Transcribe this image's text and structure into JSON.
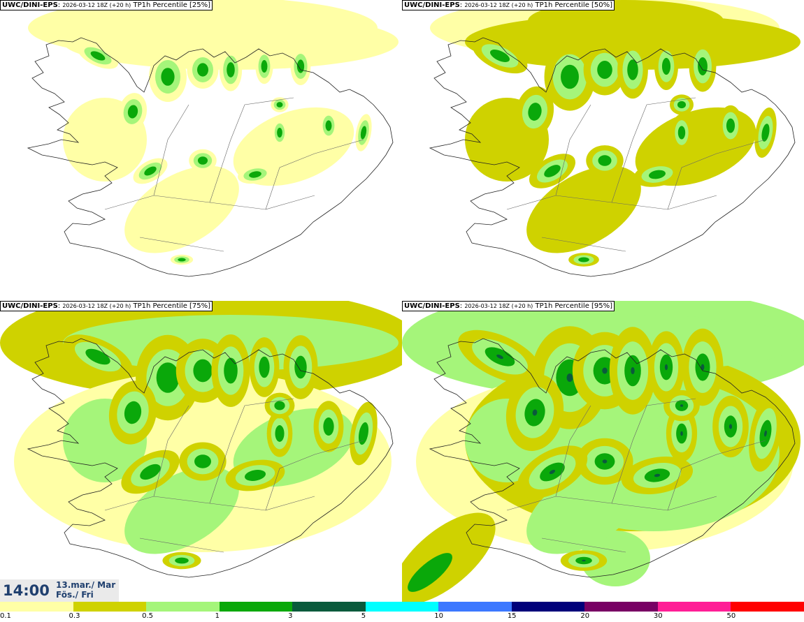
{
  "panels": [
    {
      "model": "UWC/DINI-EPS",
      "run": "2026-03-12 18Z (+20 h)",
      "field": "TP1h Percentile [25%]",
      "level": 0
    },
    {
      "model": "UWC/DINI-EPS",
      "run": "2026-03-12 18Z (+20 h)",
      "field": "TP1h Percentile [50%]",
      "level": 1
    },
    {
      "model": "UWC/DINI-EPS",
      "run": "2026-03-12 18Z (+20 h)",
      "field": "TP1h Percentile [75%]",
      "level": 2
    },
    {
      "model": "UWC/DINI-EPS",
      "run": "2026-03-12 18Z (+20 h)",
      "field": "TP1h Percentile [95%]",
      "level": 3
    }
  ],
  "time": {
    "clock": "14:00",
    "date_line1": "13.mar./ Mar",
    "date_line2": "Fös./ Fri"
  },
  "legend": {
    "colors": [
      "#ffffa6",
      "#cfd200",
      "#a5f57a",
      "#0aa80a",
      "#0a5a3c",
      "#00ffff",
      "#3c78ff",
      "#00007a",
      "#780064",
      "#ff1e96",
      "#ff0000"
    ],
    "ticks": [
      "0.1",
      "0.3",
      "0.5",
      "1",
      "3",
      "5",
      "10",
      "15",
      "20",
      "30",
      "50"
    ]
  }
}
